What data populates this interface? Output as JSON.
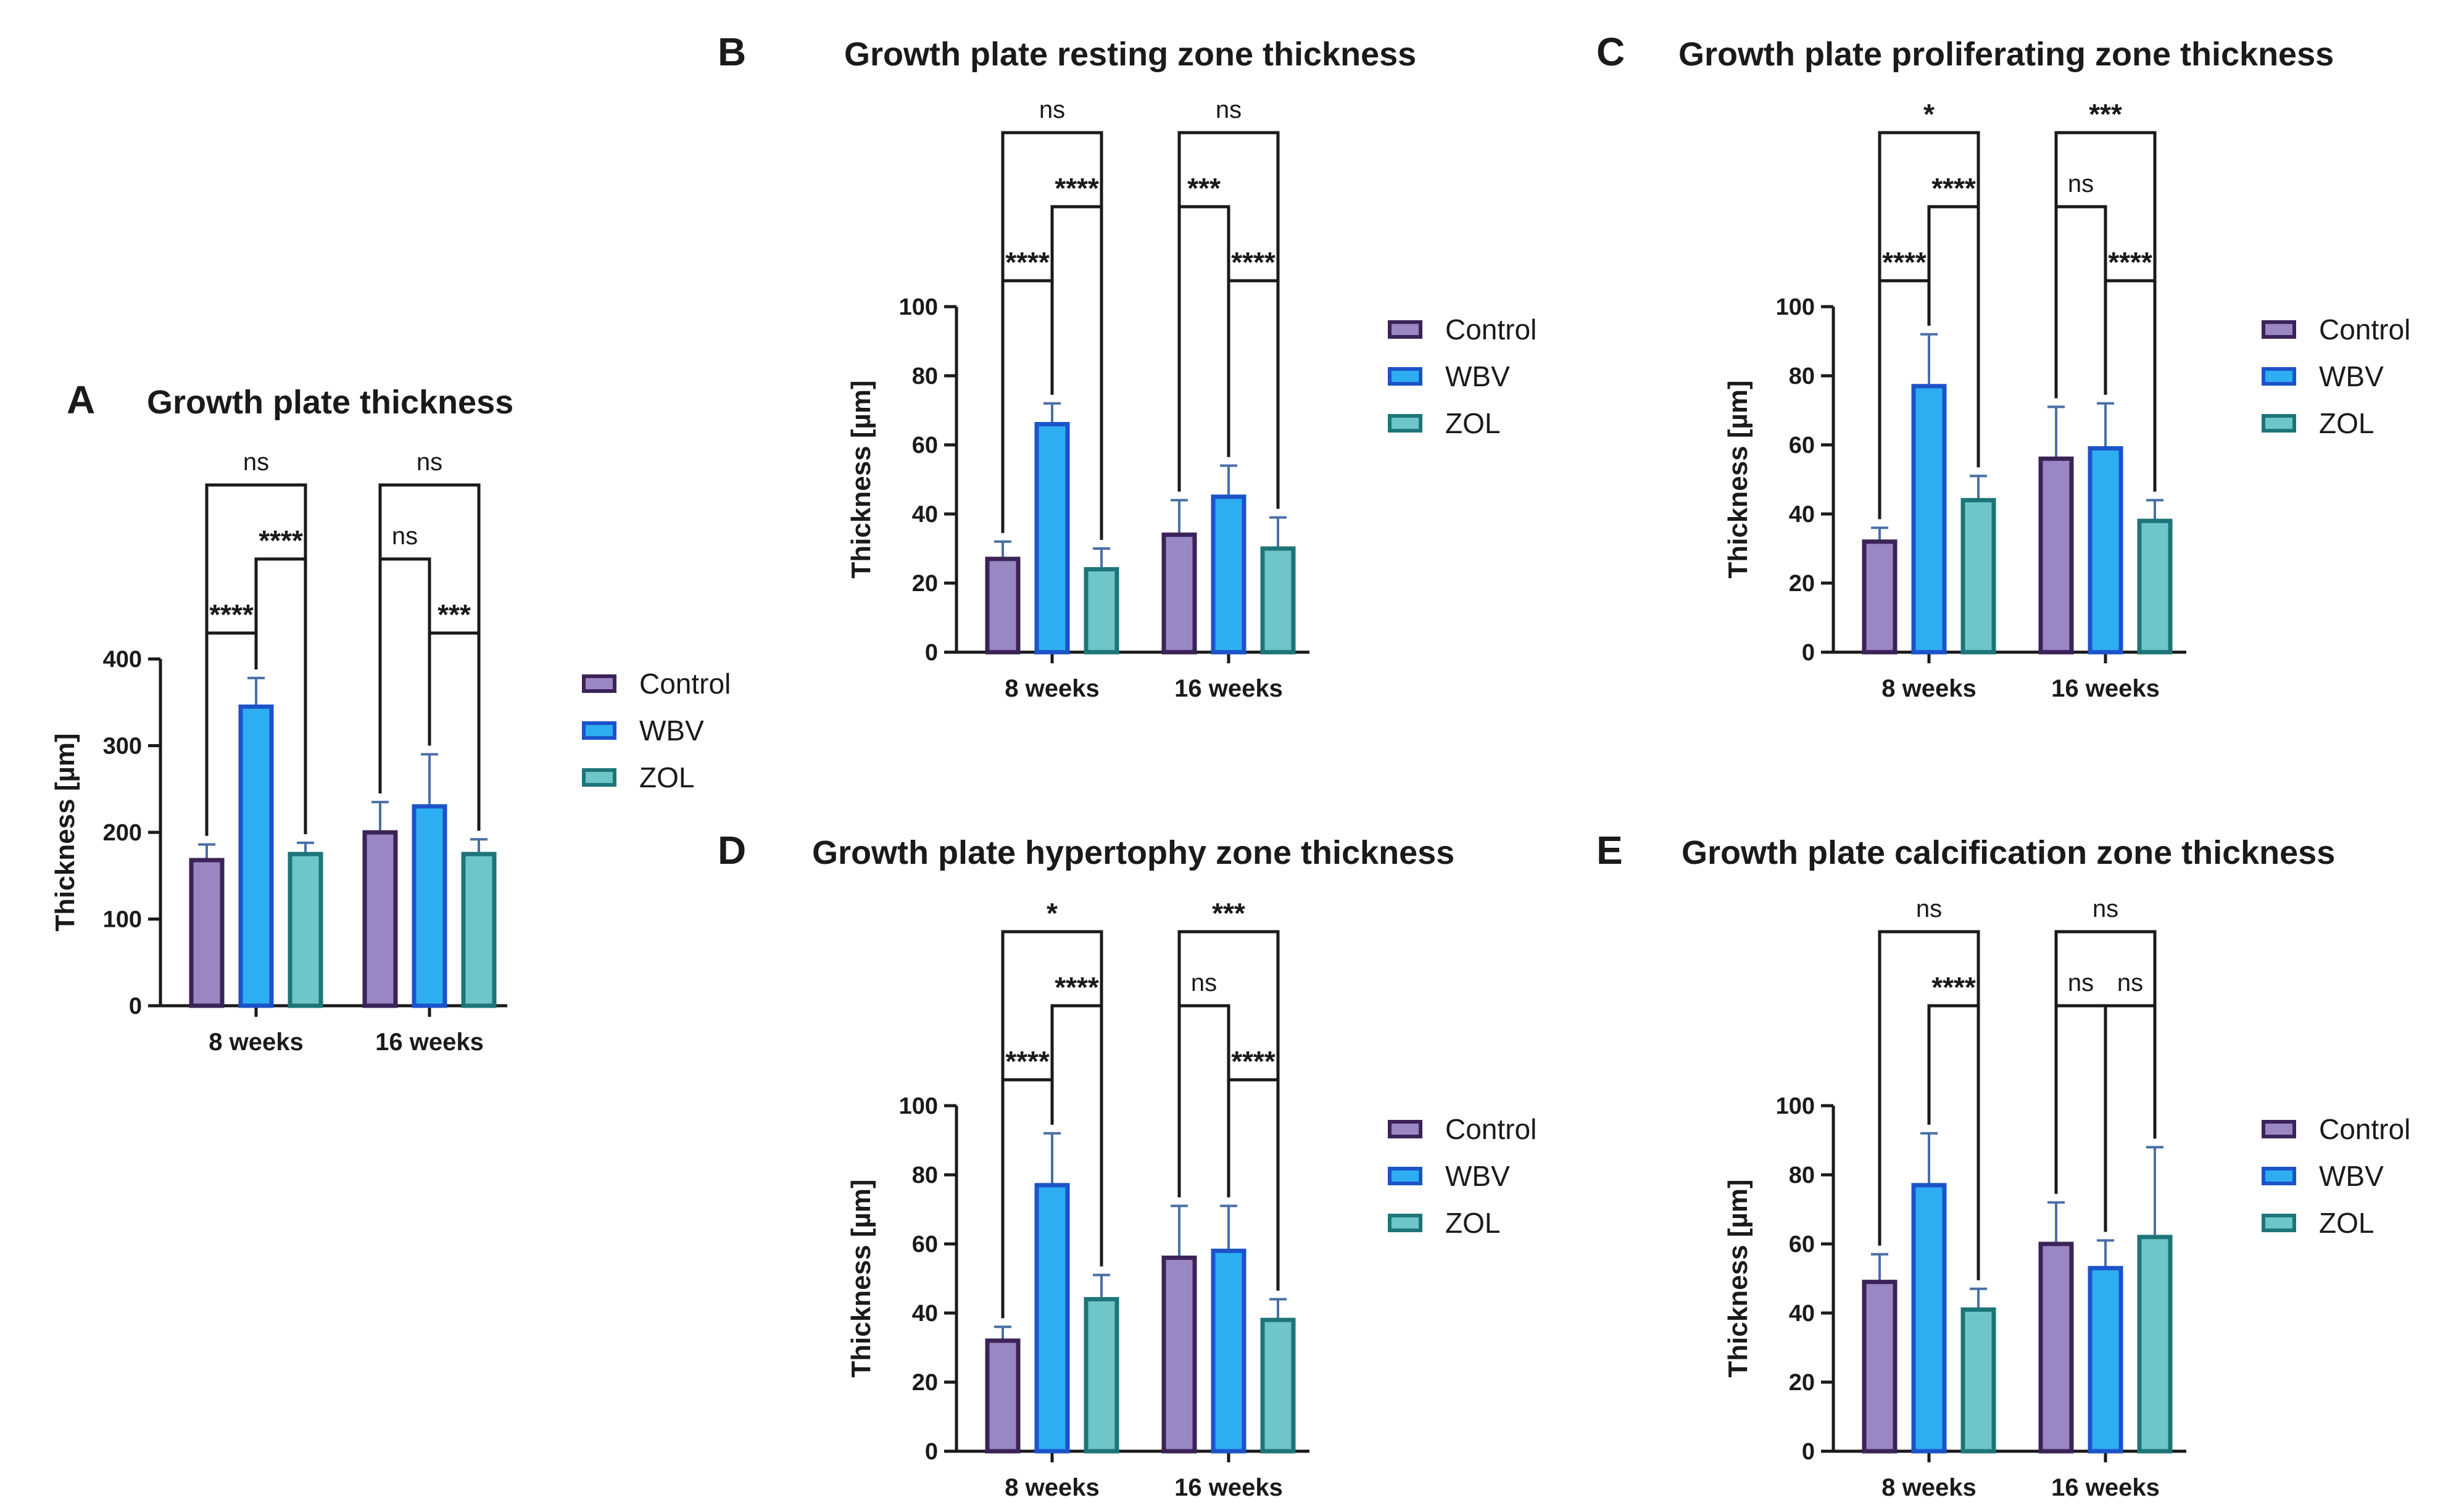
{
  "colors": {
    "Control": {
      "fill": "#9b86c4",
      "stroke": "#3b2357"
    },
    "WBV": {
      "fill": "#2eaef2",
      "stroke": "#1c53c9"
    },
    "ZOL": {
      "fill": "#6ec6c9",
      "stroke": "#1e7579"
    },
    "error": "#4a6fa5",
    "axis": "#1a1a1a"
  },
  "chart_data": [
    {
      "id": "A",
      "letter": "A",
      "type": "bar",
      "title": "Growth plate thickness",
      "ylabel": "Thickness [µm]",
      "ylim": [
        0,
        400
      ],
      "yticks": [
        "0",
        "100",
        "200",
        "300",
        "400"
      ],
      "categories": [
        "8 weeks",
        "16 weeks"
      ],
      "series": [
        {
          "name": "Control",
          "values": [
            168,
            200
          ],
          "errors": [
            18,
            35
          ]
        },
        {
          "name": "WBV",
          "values": [
            345,
            230
          ],
          "errors": [
            33,
            60
          ]
        },
        {
          "name": "ZOL",
          "values": [
            175,
            175
          ],
          "errors": [
            13,
            17
          ]
        }
      ],
      "legend": [
        "Control",
        "WBV",
        "ZOL"
      ],
      "significance": [
        {
          "group": 0,
          "from": 0,
          "to": 2,
          "level": 0,
          "label": "ns"
        },
        {
          "group": 0,
          "from": 1,
          "to": 2,
          "level": 1,
          "label": "****"
        },
        {
          "group": 0,
          "from": 0,
          "to": 1,
          "level": 2,
          "label": "****"
        },
        {
          "group": 1,
          "from": 0,
          "to": 2,
          "level": 0,
          "label": "ns"
        },
        {
          "group": 1,
          "from": 0,
          "to": 1,
          "level": 1,
          "label": "ns"
        },
        {
          "group": 1,
          "from": 1,
          "to": 2,
          "level": 2,
          "label": "***"
        }
      ]
    },
    {
      "id": "B",
      "letter": "B",
      "type": "bar",
      "title": "Growth plate resting zone thickness",
      "ylabel": "Thickness [µm]",
      "ylim": [
        0,
        100
      ],
      "yticks": [
        "0",
        "20",
        "40",
        "60",
        "80",
        "100"
      ],
      "categories": [
        "8 weeks",
        "16 weeks"
      ],
      "series": [
        {
          "name": "Control",
          "values": [
            27,
            34
          ],
          "errors": [
            5,
            10
          ]
        },
        {
          "name": "WBV",
          "values": [
            66,
            45
          ],
          "errors": [
            6,
            9
          ]
        },
        {
          "name": "ZOL",
          "values": [
            24,
            30
          ],
          "errors": [
            6,
            9
          ]
        }
      ],
      "legend": [
        "Control",
        "WBV",
        "ZOL"
      ],
      "significance": [
        {
          "group": 0,
          "from": 0,
          "to": 2,
          "level": 0,
          "label": "ns"
        },
        {
          "group": 0,
          "from": 1,
          "to": 2,
          "level": 1,
          "label": "****"
        },
        {
          "group": 0,
          "from": 0,
          "to": 1,
          "level": 2,
          "label": "****"
        },
        {
          "group": 1,
          "from": 0,
          "to": 2,
          "level": 0,
          "label": "ns"
        },
        {
          "group": 1,
          "from": 0,
          "to": 1,
          "level": 1,
          "label": "***"
        },
        {
          "group": 1,
          "from": 1,
          "to": 2,
          "level": 2,
          "label": "****"
        }
      ]
    },
    {
      "id": "C",
      "letter": "C",
      "type": "bar",
      "title": "Growth plate proliferating zone thickness",
      "ylabel": "Thickness [µm]",
      "ylim": [
        0,
        100
      ],
      "yticks": [
        "0",
        "20",
        "40",
        "60",
        "80",
        "100"
      ],
      "categories": [
        "8 weeks",
        "16 weeks"
      ],
      "series": [
        {
          "name": "Control",
          "values": [
            32,
            56
          ],
          "errors": [
            4,
            15
          ]
        },
        {
          "name": "WBV",
          "values": [
            77,
            59
          ],
          "errors": [
            15,
            13
          ]
        },
        {
          "name": "ZOL",
          "values": [
            44,
            38
          ],
          "errors": [
            7,
            6
          ]
        }
      ],
      "legend": [
        "Control",
        "WBV",
        "ZOL"
      ],
      "significance": [
        {
          "group": 0,
          "from": 0,
          "to": 2,
          "level": 0,
          "label": "*"
        },
        {
          "group": 0,
          "from": 1,
          "to": 2,
          "level": 1,
          "label": "****"
        },
        {
          "group": 0,
          "from": 0,
          "to": 1,
          "level": 2,
          "label": "****"
        },
        {
          "group": 1,
          "from": 0,
          "to": 2,
          "level": 0,
          "label": "***"
        },
        {
          "group": 1,
          "from": 0,
          "to": 1,
          "level": 1,
          "label": "ns"
        },
        {
          "group": 1,
          "from": 1,
          "to": 2,
          "level": 2,
          "label": "****"
        }
      ]
    },
    {
      "id": "D",
      "letter": "D",
      "type": "bar",
      "title": "Growth plate hypertophy zone thickness",
      "ylabel": "Thickness [µm]",
      "ylim": [
        0,
        100
      ],
      "yticks": [
        "0",
        "20",
        "40",
        "60",
        "80",
        "100"
      ],
      "categories": [
        "8 weeks",
        "16 weeks"
      ],
      "series": [
        {
          "name": "Control",
          "values": [
            32,
            56
          ],
          "errors": [
            4,
            15
          ]
        },
        {
          "name": "WBV",
          "values": [
            77,
            58
          ],
          "errors": [
            15,
            13
          ]
        },
        {
          "name": "ZOL",
          "values": [
            44,
            38
          ],
          "errors": [
            7,
            6
          ]
        }
      ],
      "legend": [
        "Control",
        "WBV",
        "ZOL"
      ],
      "significance": [
        {
          "group": 0,
          "from": 0,
          "to": 2,
          "level": 0,
          "label": "*"
        },
        {
          "group": 0,
          "from": 1,
          "to": 2,
          "level": 1,
          "label": "****"
        },
        {
          "group": 0,
          "from": 0,
          "to": 1,
          "level": 2,
          "label": "****"
        },
        {
          "group": 1,
          "from": 0,
          "to": 2,
          "level": 0,
          "label": "***"
        },
        {
          "group": 1,
          "from": 0,
          "to": 1,
          "level": 1,
          "label": "ns"
        },
        {
          "group": 1,
          "from": 1,
          "to": 2,
          "level": 2,
          "label": "****"
        }
      ]
    },
    {
      "id": "E",
      "letter": "E",
      "type": "bar",
      "title": "Growth plate calcification zone thickness",
      "ylabel": "Thickness [µm]",
      "ylim": [
        0,
        100
      ],
      "yticks": [
        "0",
        "20",
        "40",
        "60",
        "80",
        "100"
      ],
      "categories": [
        "8 weeks",
        "16 weeks"
      ],
      "series": [
        {
          "name": "Control",
          "values": [
            49,
            60
          ],
          "errors": [
            8,
            12
          ]
        },
        {
          "name": "WBV",
          "values": [
            77,
            53
          ],
          "errors": [
            15,
            8
          ]
        },
        {
          "name": "ZOL",
          "values": [
            41,
            62
          ],
          "errors": [
            6,
            26
          ]
        }
      ],
      "legend": [
        "Control",
        "WBV",
        "ZOL"
      ],
      "significance": [
        {
          "group": 0,
          "from": 0,
          "to": 2,
          "level": 0,
          "label": "ns"
        },
        {
          "group": 0,
          "from": 1,
          "to": 2,
          "level": 1,
          "label": "****"
        },
        {
          "group": 1,
          "from": 0,
          "to": 2,
          "level": 0,
          "label": "ns"
        },
        {
          "group": 1,
          "from": 0,
          "to": 1,
          "level": 1,
          "label": "ns"
        },
        {
          "group": 1,
          "from": 1,
          "to": 2,
          "level": 1,
          "label": "ns"
        }
      ]
    }
  ]
}
